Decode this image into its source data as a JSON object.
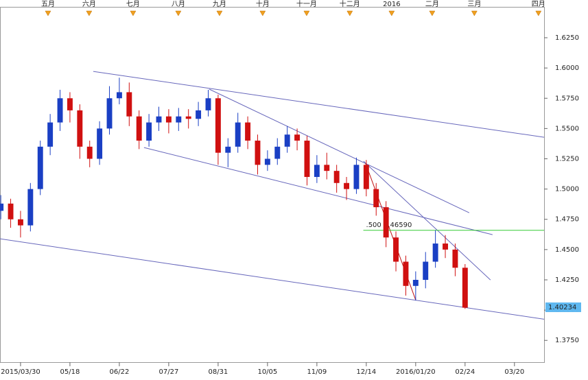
{
  "chart_data": {
    "type": "candlestick",
    "x": [
      -2,
      -1,
      0,
      1,
      2,
      3,
      4,
      5,
      6,
      7,
      8,
      9,
      10,
      11,
      12,
      13,
      14,
      15,
      16,
      17,
      18,
      19,
      20,
      21,
      22,
      23,
      24,
      25,
      26,
      27,
      28,
      29,
      30,
      31,
      32,
      33,
      34,
      35,
      36,
      37,
      38,
      39,
      40,
      41,
      42,
      43,
      44,
      45
    ],
    "open": [
      1.482,
      1.488,
      1.475,
      1.47,
      1.5,
      1.535,
      1.555,
      1.575,
      1.565,
      1.535,
      1.525,
      1.55,
      1.575,
      1.58,
      1.56,
      1.54,
      1.555,
      1.56,
      1.555,
      1.56,
      1.558,
      1.565,
      1.575,
      1.53,
      1.535,
      1.555,
      1.54,
      1.52,
      1.525,
      1.535,
      1.545,
      1.54,
      1.51,
      1.52,
      1.515,
      1.505,
      1.5,
      1.52,
      1.5,
      1.485,
      1.46,
      1.44,
      1.42,
      1.425,
      1.44,
      1.455,
      1.45,
      1.435
    ],
    "high": [
      1.495,
      1.492,
      1.482,
      1.505,
      1.54,
      1.562,
      1.582,
      1.58,
      1.57,
      1.54,
      1.556,
      1.585,
      1.592,
      1.588,
      1.565,
      1.562,
      1.568,
      1.566,
      1.567,
      1.566,
      1.572,
      1.582,
      1.578,
      1.542,
      1.563,
      1.56,
      1.545,
      1.532,
      1.542,
      1.552,
      1.55,
      1.544,
      1.528,
      1.53,
      1.52,
      1.51,
      1.526,
      1.524,
      1.505,
      1.49,
      1.465,
      1.445,
      1.432,
      1.448,
      1.466,
      1.462,
      1.455,
      1.438
    ],
    "low": [
      1.475,
      1.468,
      1.46,
      1.465,
      1.495,
      1.528,
      1.548,
      1.555,
      1.525,
      1.518,
      1.52,
      1.545,
      1.57,
      1.552,
      1.533,
      1.535,
      1.548,
      1.546,
      1.548,
      1.55,
      1.552,
      1.56,
      1.52,
      1.518,
      1.53,
      1.533,
      1.512,
      1.515,
      1.52,
      1.53,
      1.532,
      1.503,
      1.505,
      1.508,
      1.497,
      1.491,
      1.496,
      1.494,
      1.478,
      1.452,
      1.432,
      1.412,
      1.408,
      1.418,
      1.435,
      1.443,
      1.428,
      1.401
    ],
    "close": [
      1.488,
      1.475,
      1.47,
      1.5,
      1.535,
      1.555,
      1.575,
      1.565,
      1.535,
      1.525,
      1.55,
      1.575,
      1.58,
      1.56,
      1.54,
      1.555,
      1.56,
      1.555,
      1.56,
      1.558,
      1.565,
      1.575,
      1.53,
      1.535,
      1.555,
      1.54,
      1.52,
      1.525,
      1.535,
      1.545,
      1.54,
      1.51,
      1.52,
      1.515,
      1.505,
      1.5,
      1.52,
      1.5,
      1.485,
      1.46,
      1.44,
      1.42,
      1.425,
      1.44,
      1.455,
      1.45,
      1.435,
      1.402
    ],
    "up_color": "#1a3fc4",
    "down_color": "#d01010",
    "xlim": [
      -2.08,
      53
    ],
    "xticks": [
      {
        "value": 0,
        "label": "2015/03/30"
      },
      {
        "value": 5,
        "label": "05/18"
      },
      {
        "value": 10,
        "label": "06/22"
      },
      {
        "value": 15,
        "label": "07/27"
      },
      {
        "value": 20,
        "label": "08/31"
      },
      {
        "value": 25,
        "label": "10/05"
      },
      {
        "value": 30,
        "label": "11/09"
      },
      {
        "value": 35,
        "label": "12/14"
      },
      {
        "value": 40,
        "label": "2016/01/20"
      },
      {
        "value": 45,
        "label": "02/24"
      },
      {
        "value": 50,
        "label": "03/20"
      }
    ],
    "top_ticks": [
      {
        "value": 2.78,
        "label": "五月"
      },
      {
        "value": 6.94,
        "label": "六月"
      },
      {
        "value": 11.39,
        "label": "七月"
      },
      {
        "value": 15.97,
        "label": "八月"
      },
      {
        "value": 20.14,
        "label": "九月"
      },
      {
        "value": 24.51,
        "label": "十月"
      },
      {
        "value": 28.96,
        "label": "十一月"
      },
      {
        "value": 33.33,
        "label": "十二月"
      },
      {
        "value": 37.57,
        "label": "2016"
      },
      {
        "value": 41.67,
        "label": "二月"
      },
      {
        "value": 45.94,
        "label": "三月"
      },
      {
        "value": 52.43,
        "label": "四月"
      }
    ],
    "ylim": [
      1.357,
      1.6505
    ],
    "yticks": [
      {
        "value": 1.375,
        "label": "1.3750"
      },
      {
        "value": 1.4,
        "label": "1.4000"
      },
      {
        "value": 1.425,
        "label": "1.4250"
      },
      {
        "value": 1.45,
        "label": "1.4500"
      },
      {
        "value": 1.475,
        "label": "1.4750"
      },
      {
        "value": 1.5,
        "label": "1.5000"
      },
      {
        "value": 1.525,
        "label": "1.5250"
      },
      {
        "value": 1.55,
        "label": "1.5500"
      },
      {
        "value": 1.575,
        "label": "1.5750"
      },
      {
        "value": 1.6,
        "label": "1.6000"
      },
      {
        "value": 1.625,
        "label": "1.6250"
      }
    ],
    "trendlines": [
      {
        "x": [
          7.36,
          53
        ],
        "y": [
          1.5972,
          1.5428
        ],
        "color": "#6666bb"
      },
      {
        "x": [
          -2.08,
          53
        ],
        "y": [
          1.4589,
          1.3925
        ],
        "color": "#6666bb"
      },
      {
        "x": [
          12.5,
          47.78
        ],
        "y": [
          1.5343,
          1.4623
        ],
        "color": "#6666bb"
      },
      {
        "x": [
          19.1,
          45.42
        ],
        "y": [
          1.5825,
          1.4804
        ],
        "color": "#6666bb"
      },
      {
        "x": [
          34.72,
          47.57
        ],
        "y": [
          1.523,
          1.4249
        ],
        "color": "#6666bb"
      },
      {
        "x": [
          34.93,
          40
        ],
        "y": [
          1.5212,
          1.4084
        ],
        "color": "#c01010"
      }
    ],
    "level": {
      "value": 1.4659,
      "label": ".500 1.46590",
      "x_start": 34.7,
      "color": "#33cc33"
    },
    "last_price": {
      "value": 1.40234,
      "label": "1.40234",
      "color": "#5fb8f0"
    }
  }
}
